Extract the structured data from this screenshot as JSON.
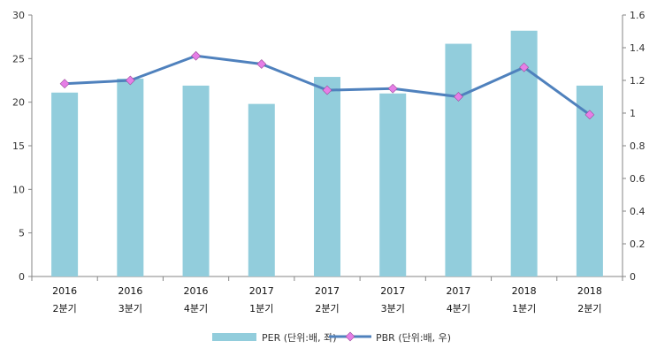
{
  "chart_data": {
    "type": "bar",
    "categories": [
      [
        "2016",
        "2분기"
      ],
      [
        "2016",
        "3분기"
      ],
      [
        "2016",
        "4분기"
      ],
      [
        "2017",
        "1분기"
      ],
      [
        "2017",
        "2분기"
      ],
      [
        "2017",
        "3분기"
      ],
      [
        "2017",
        "4분기"
      ],
      [
        "2018",
        "1분기"
      ],
      [
        "2018",
        "2분기"
      ]
    ],
    "series": [
      {
        "name": "PER (단위:배, 좌)",
        "type": "bar",
        "axis": "left",
        "color": "#92CDDC",
        "values": [
          21.1,
          22.7,
          21.9,
          19.8,
          22.9,
          21.0,
          26.7,
          28.2,
          21.9
        ]
      },
      {
        "name": "PBR (단위:배, 우)",
        "type": "line",
        "axis": "right",
        "color": "#4F81BD",
        "marker_color": "#E67EE6",
        "values": [
          1.18,
          1.2,
          1.35,
          1.3,
          1.14,
          1.15,
          1.1,
          1.28,
          0.99
        ]
      }
    ],
    "y_left": {
      "min": 0,
      "max": 30,
      "ticks": [
        "0",
        "5",
        "10",
        "15",
        "20",
        "25",
        "30"
      ]
    },
    "y_right": {
      "min": 0,
      "max": 1.6,
      "ticks": [
        "0",
        "0.2",
        "0.4",
        "0.6",
        "0.8",
        "1",
        "1.2",
        "1.4",
        "1.6"
      ]
    },
    "grid": false,
    "legend_position": "bottom"
  }
}
